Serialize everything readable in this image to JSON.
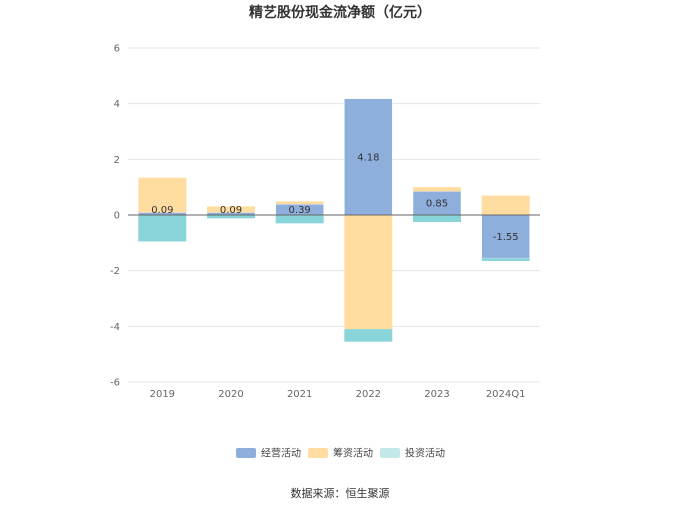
{
  "chart_data": {
    "type": "bar",
    "stacked": true,
    "title": "精艺股份现金流净额（亿元）",
    "xlabel": "",
    "ylabel": "",
    "categories": [
      "2019",
      "2020",
      "2021",
      "2022",
      "2023",
      "2024Q1"
    ],
    "ylim": [
      -6,
      6
    ],
    "yticks": [
      "6",
      "4",
      "2",
      "0",
      "-2",
      "-4",
      "-6"
    ],
    "ytick_values": [
      6,
      4,
      2,
      0,
      -2,
      -4,
      -6
    ],
    "series": [
      {
        "name": "经营活动",
        "color": "#8eaedc",
        "values": [
          0.09,
          0.09,
          0.39,
          4.18,
          0.85,
          -1.55
        ]
      },
      {
        "name": "筹资活动",
        "color": "#ffdda0",
        "values": [
          1.25,
          0.22,
          0.1,
          -4.1,
          0.15,
          0.7
        ]
      },
      {
        "name": "投资活动",
        "color": "#88d4d8",
        "values": [
          -0.95,
          -0.12,
          -0.3,
          -0.45,
          -0.25,
          -0.1
        ]
      }
    ],
    "data_labels": [
      "0.09",
      "0.09",
      "0.39",
      "4.18",
      "0.85",
      "-1.55"
    ],
    "legend_position": "bottom",
    "grid": true
  },
  "legend": [
    {
      "name": "经营活动",
      "color": "#8eaedc"
    },
    {
      "name": "筹资活动",
      "color": "#ffdda0"
    },
    {
      "name": "投资活动",
      "color": "#c3e8ea"
    }
  ],
  "source": "数据来源：恒生聚源"
}
